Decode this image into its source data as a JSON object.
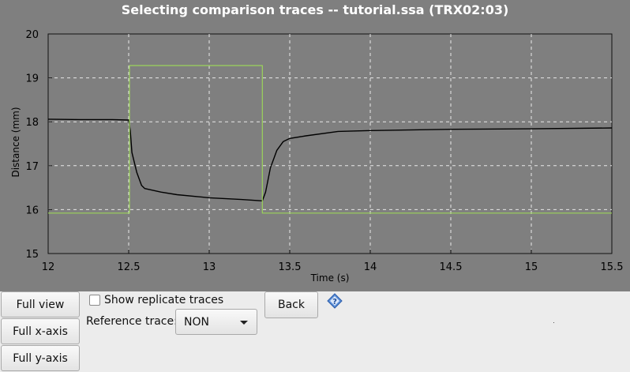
{
  "window": {
    "title": "Selecting comparison traces -- tutorial.ssa (TRX02:03)"
  },
  "chart_data": {
    "type": "line",
    "title": "Selecting comparison traces -- tutorial.ssa (TRX02:03)",
    "xlabel": "Time (s)",
    "ylabel": "Distance (mm)",
    "xlim": [
      12,
      15.5
    ],
    "ylim": [
      15,
      20
    ],
    "xticks": [
      "12",
      "12.5",
      "13",
      "13.5",
      "14",
      "14.5",
      "15",
      "15.5"
    ],
    "yticks": [
      "15",
      "16",
      "17",
      "18",
      "19",
      "20"
    ],
    "grid": true,
    "series": [
      {
        "color": "#000000",
        "x": [
          12.0,
          12.2,
          12.4,
          12.5,
          12.51,
          12.52,
          12.55,
          12.58,
          12.6,
          12.7,
          12.8,
          13.0,
          13.2,
          13.33,
          13.35,
          13.38,
          13.42,
          13.46,
          13.5,
          13.6,
          13.8,
          14.0,
          14.5,
          15.0,
          15.5
        ],
        "y": [
          18.06,
          18.05,
          18.05,
          18.04,
          17.8,
          17.3,
          16.85,
          16.55,
          16.48,
          16.4,
          16.34,
          16.27,
          16.23,
          16.2,
          16.4,
          16.95,
          17.35,
          17.55,
          17.62,
          17.68,
          17.78,
          17.8,
          17.83,
          17.84,
          17.86
        ]
      },
      {
        "color": "#9bd45a",
        "x": [
          12.0,
          12.505,
          12.505,
          13.33,
          13.33,
          15.5
        ],
        "y": [
          15.92,
          15.92,
          19.28,
          19.28,
          15.92,
          15.92
        ]
      }
    ]
  },
  "controls": {
    "full_view": "Full view",
    "full_x": "Full x-axis",
    "full_y": "Full y-axis",
    "show_replicate": "Show replicate traces",
    "reference_label": "Reference trace:",
    "reference_value": "NON",
    "back": "Back"
  },
  "icons": {
    "help": "help-icon",
    "dropdown": "chevron-down-icon"
  }
}
